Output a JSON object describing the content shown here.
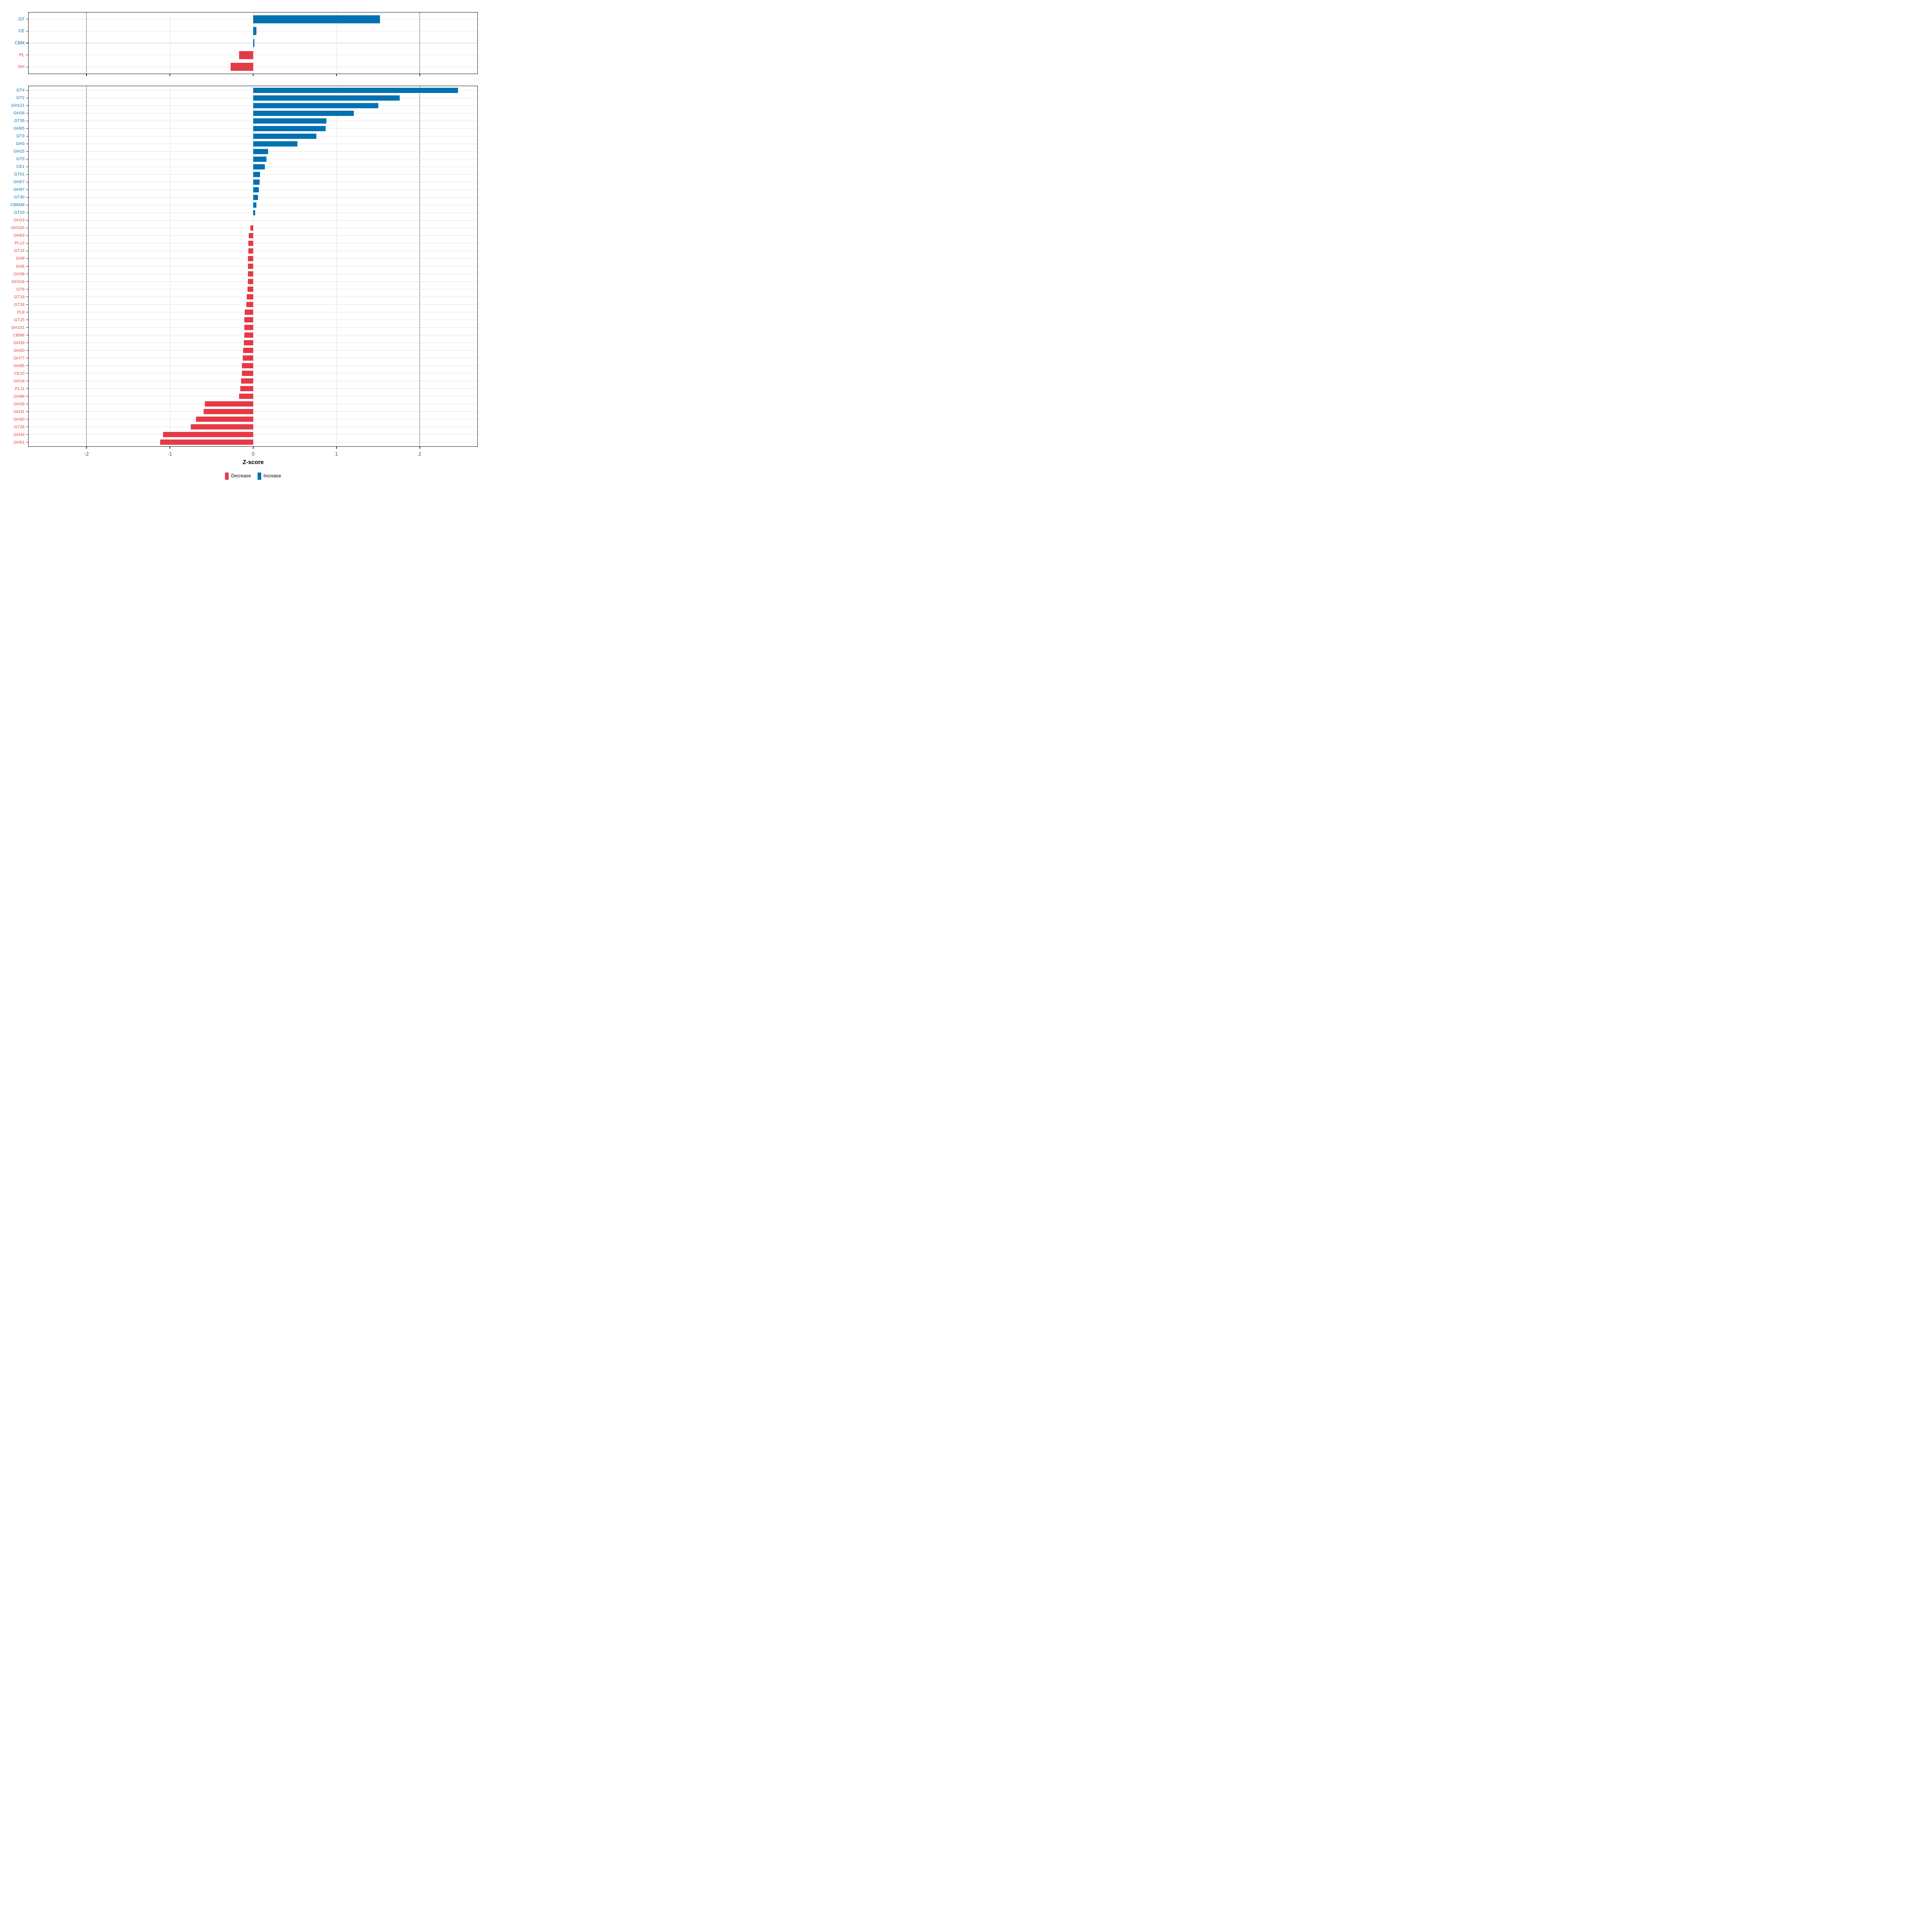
{
  "axis": {
    "title": "Z-score",
    "ticks": [
      -2,
      -1,
      0,
      1,
      2
    ],
    "tick_labels": [
      "-2",
      "-1",
      "0",
      "1",
      "2"
    ],
    "xlim": [
      -2.7,
      2.7
    ],
    "reference_lines": [
      -2,
      2
    ],
    "grid": true
  },
  "legend": {
    "position": "bottom",
    "items": [
      {
        "label": "Decrease",
        "key": "decrease"
      },
      {
        "label": "Increase",
        "key": "increase"
      }
    ]
  },
  "styles": {
    "increase": "#0072B2",
    "decrease": "#E63946",
    "grid": "#E3E3E3",
    "border": "#1A1A1A",
    "dashed": "#3A3A3A",
    "tick_mark": "#333333",
    "tick_text": "#4D4D4D",
    "background": "#FFFFFF"
  },
  "chart_data": [
    {
      "type": "bar",
      "orientation": "horizontal",
      "panel": "top",
      "xlabel": "Z-score",
      "xlim": [
        -2.7,
        2.7
      ],
      "categories": [
        "GT",
        "CE",
        "CBM",
        "PL",
        "GH"
      ],
      "values": [
        1.52,
        0.04,
        0.016,
        -0.17,
        -0.27
      ],
      "directions": [
        "up",
        "up",
        "up",
        "down",
        "down"
      ],
      "reference_lines": [
        -2,
        2
      ]
    },
    {
      "type": "bar",
      "orientation": "horizontal",
      "panel": "bottom",
      "xlabel": "Z-score",
      "xlim": [
        -2.7,
        2.7
      ],
      "categories": [
        "GT4",
        "GT2",
        "GH121",
        "GH26",
        "GT35",
        "GH65",
        "GT3",
        "GH3",
        "GH15",
        "GT5",
        "CE1",
        "GT51",
        "GH57",
        "GH97",
        "GT30",
        "CBM48",
        "GT20",
        "GH13",
        "GH105",
        "GH63",
        "PL12",
        "GT14",
        "GH9",
        "GH5",
        "GH38",
        "GH116",
        "GT9",
        "GT19",
        "GT28",
        "PL8",
        "GT25",
        "GH101",
        "CBM6",
        "GH33",
        "GH20",
        "GH77",
        "GH95",
        "CE10",
        "GH18",
        "PL11",
        "GH88",
        "GH29",
        "GH31",
        "GH30",
        "GT26",
        "GH43",
        "GH51"
      ],
      "values": [
        2.46,
        1.76,
        1.5,
        1.21,
        0.88,
        0.87,
        0.76,
        0.53,
        0.18,
        0.16,
        0.14,
        0.081,
        0.076,
        0.069,
        0.06,
        0.04,
        0.022,
        0.0,
        -0.036,
        -0.051,
        -0.059,
        -0.06,
        -0.061,
        -0.061,
        -0.062,
        -0.063,
        -0.07,
        -0.076,
        -0.081,
        -0.103,
        -0.104,
        -0.105,
        -0.106,
        -0.112,
        -0.122,
        -0.125,
        -0.134,
        -0.137,
        -0.145,
        -0.155,
        -0.17,
        -0.58,
        -0.592,
        -0.685,
        -0.747,
        -1.083,
        -1.115
      ],
      "directions": [
        "up",
        "up",
        "up",
        "up",
        "up",
        "up",
        "up",
        "up",
        "up",
        "up",
        "up",
        "up",
        "up",
        "up",
        "up",
        "up",
        "up",
        "down",
        "down",
        "down",
        "down",
        "down",
        "down",
        "down",
        "down",
        "down",
        "down",
        "down",
        "down",
        "down",
        "down",
        "down",
        "down",
        "down",
        "down",
        "down",
        "down",
        "down",
        "down",
        "down",
        "down",
        "down",
        "down",
        "down",
        "down",
        "down",
        "down"
      ],
      "reference_lines": [
        -2,
        2
      ]
    }
  ]
}
